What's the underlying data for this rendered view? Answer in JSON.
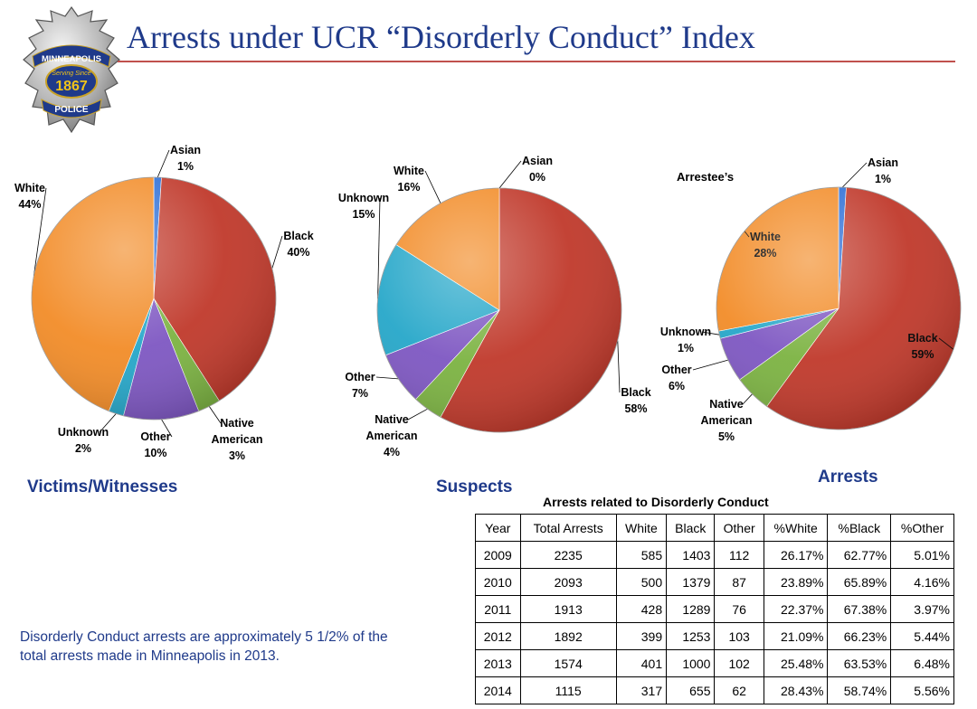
{
  "title": "Arrests under UCR “Disorderly Conduct” Index",
  "badge": {
    "top_text": "MINNEAPOLIS",
    "middle_text": "Serving Since",
    "year": "1867",
    "bottom_text": "POLICE"
  },
  "sections": {
    "victims": "Victims/Witnesses",
    "suspects": "Suspects",
    "arrests": "Arrests"
  },
  "chart_data": [
    {
      "type": "pie",
      "name": "victims",
      "slices": [
        {
          "label": "Asian",
          "value": 1,
          "pct": "1%",
          "color": "#2e6fd6"
        },
        {
          "label": "Black",
          "value": 40,
          "pct": "40%",
          "color": "#c0392b"
        },
        {
          "label": "Native American",
          "value": 3,
          "pct": "3%",
          "color": "#7cb342"
        },
        {
          "label": "Other",
          "value": 10,
          "pct": "10%",
          "color": "#7e57c2"
        },
        {
          "label": "Unknown",
          "value": 2,
          "pct": "2%",
          "color": "#26a7c9"
        },
        {
          "label": "White",
          "value": 44,
          "pct": "44%",
          "color": "#f28c28"
        }
      ]
    },
    {
      "type": "pie",
      "name": "suspects",
      "slices": [
        {
          "label": "Asian",
          "value": 0,
          "pct": "0%",
          "color": "#2e6fd6"
        },
        {
          "label": "Black",
          "value": 58,
          "pct": "58%",
          "color": "#c0392b"
        },
        {
          "label": "Native American",
          "value": 4,
          "pct": "4%",
          "color": "#7cb342"
        },
        {
          "label": "Other",
          "value": 7,
          "pct": "7%",
          "color": "#7e57c2"
        },
        {
          "label": "Unknown",
          "value": 15,
          "pct": "15%",
          "color": "#26a7c9"
        },
        {
          "label": "White",
          "value": 16,
          "pct": "16%",
          "color": "#f28c28"
        }
      ]
    },
    {
      "type": "pie",
      "name": "arrests",
      "title": "Arrestee’s",
      "slices": [
        {
          "label": "Asian",
          "value": 1,
          "pct": "1%",
          "color": "#2e6fd6"
        },
        {
          "label": "Black",
          "value": 59,
          "pct": "59%",
          "color": "#c0392b"
        },
        {
          "label": "Native American",
          "value": 5,
          "pct": "5%",
          "color": "#7cb342"
        },
        {
          "label": "Other",
          "value": 6,
          "pct": "6%",
          "color": "#7e57c2"
        },
        {
          "label": "Unknown",
          "value": 1,
          "pct": "1%",
          "color": "#26a7c9"
        },
        {
          "label": "White",
          "value": 28,
          "pct": "28%",
          "color": "#f28c28"
        }
      ]
    },
    {
      "type": "table",
      "title": "Arrests related to Disorderly Conduct",
      "columns": [
        "Year",
        "Total Arrests",
        "White",
        "Black",
        "Other",
        "%White",
        "%Black",
        "%Other"
      ],
      "rows": [
        [
          "2009",
          "2235",
          "585",
          "1403",
          "112",
          "26.17%",
          "62.77%",
          "5.01%"
        ],
        [
          "2010",
          "2093",
          "500",
          "1379",
          "87",
          "23.89%",
          "65.89%",
          "4.16%"
        ],
        [
          "2011",
          "1913",
          "428",
          "1289",
          "76",
          "22.37%",
          "67.38%",
          "3.97%"
        ],
        [
          "2012",
          "1892",
          "399",
          "1253",
          "103",
          "21.09%",
          "66.23%",
          "5.44%"
        ],
        [
          "2013",
          "1574",
          "401",
          "1000",
          "102",
          "25.48%",
          "63.53%",
          "6.48%"
        ],
        [
          "2014",
          "1115",
          "317",
          "655",
          "62",
          "28.43%",
          "58.74%",
          "5.56%"
        ]
      ]
    }
  ],
  "note": "Disorderly Conduct arrests are approximately 5 1/2% of the total arrests made in Minneapolis in 2013."
}
